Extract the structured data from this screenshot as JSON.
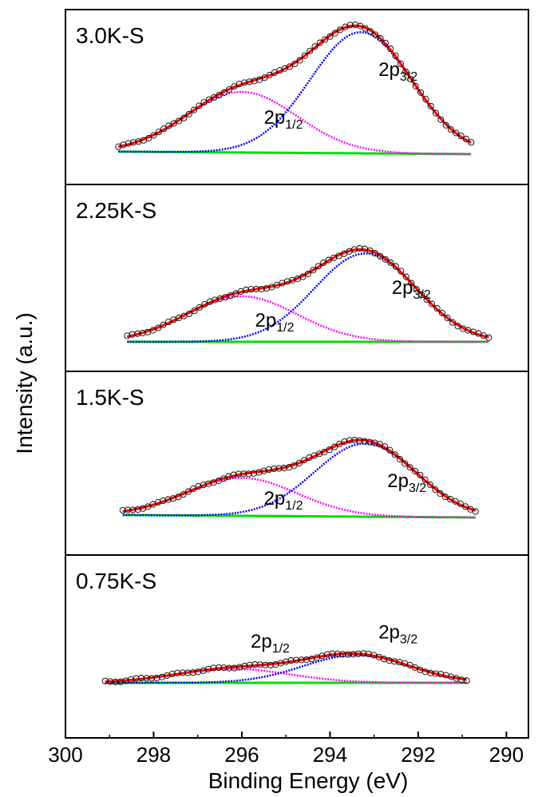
{
  "chart_data": {
    "type": "line",
    "xlabel": "Binding Energy (eV)",
    "ylabel": "Intensity (a.u.)",
    "xlim": [
      300,
      289.5
    ],
    "x_reversed": true,
    "x_ticks": [
      "300",
      "298",
      "296",
      "294",
      "292",
      "290"
    ],
    "x_tick_values": [
      300,
      298,
      296,
      294,
      292,
      290
    ],
    "colors": {
      "data_points": "#000000",
      "fit_envelope": "#ff0000",
      "peak_2p1_2": "#ff00ff",
      "peak_2p3_2": "#0000ff",
      "background": "#00dd00"
    },
    "panels": [
      {
        "label": "3.0K-S",
        "x_range": [
          298.8,
          290.8
        ],
        "peaks": [
          {
            "name": "2p1/2",
            "label_main": "2p",
            "label_sub": "1/2",
            "center": 296.0,
            "height": 0.48,
            "width": 1.25,
            "label_x": 295.5,
            "label_y": 0.24
          },
          {
            "name": "2p3/2",
            "label_main": "2p",
            "label_sub": "3/2",
            "center": 293.3,
            "height": 0.96,
            "width": 1.15,
            "label_x": 292.9,
            "label_y": 0.62
          }
        ],
        "baseline": [
          0.02,
          0.0
        ]
      },
      {
        "label": "2.25K-S",
        "x_range": [
          298.6,
          290.4
        ],
        "peaks": [
          {
            "name": "2p1/2",
            "label_main": "2p",
            "label_sub": "1/2",
            "center": 296.0,
            "height": 0.36,
            "width": 1.25,
            "label_x": 295.7,
            "label_y": 0.12
          },
          {
            "name": "2p3/2",
            "label_main": "2p",
            "label_sub": "3/2",
            "center": 293.2,
            "height": 0.7,
            "width": 1.15,
            "label_x": 292.6,
            "label_y": 0.38
          }
        ],
        "baseline": [
          0.0,
          0.0
        ]
      },
      {
        "label": "1.5K-S",
        "x_range": [
          298.7,
          290.7
        ],
        "peaks": [
          {
            "name": "2p1/2",
            "label_main": "2p",
            "label_sub": "1/2",
            "center": 296.0,
            "height": 0.3,
            "width": 1.25,
            "label_x": 295.5,
            "label_y": 0.1
          },
          {
            "name": "2p3/2",
            "label_main": "2p",
            "label_sub": "3/2",
            "center": 293.2,
            "height": 0.58,
            "width": 1.15,
            "label_x": 292.7,
            "label_y": 0.24
          }
        ],
        "baseline": [
          0.02,
          0.0
        ]
      },
      {
        "label": "0.75K-S",
        "x_range": [
          299.1,
          290.9
        ],
        "peaks": [
          {
            "name": "2p1/2",
            "label_main": "2p",
            "label_sub": "1/2",
            "center": 296.2,
            "height": 0.11,
            "width": 1.3,
            "label_x": 295.8,
            "label_y": 0.28
          },
          {
            "name": "2p3/2",
            "label_main": "2p",
            "label_sub": "3/2",
            "center": 293.4,
            "height": 0.22,
            "width": 1.2,
            "label_x": 292.9,
            "label_y": 0.35
          }
        ],
        "baseline": [
          0.0,
          0.0
        ]
      }
    ]
  }
}
